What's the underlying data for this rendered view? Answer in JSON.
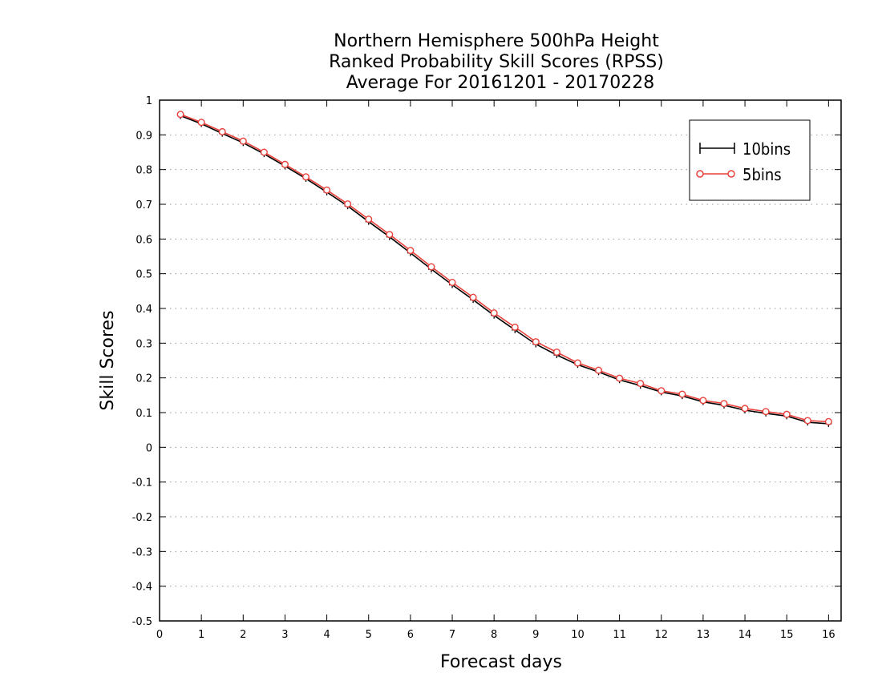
{
  "chart_data": {
    "type": "line",
    "title": [
      "Northern Hemisphere 500hPa Height",
      "Ranked Probability Skill Scores (RPSS)",
      "Average For 20161201 - 20170228"
    ],
    "xlabel": "Forecast days",
    "ylabel": "Skill Scores",
    "xlim": [
      0,
      16.3
    ],
    "ylim": [
      -0.5,
      1
    ],
    "xticks": [
      0,
      1,
      2,
      3,
      4,
      5,
      6,
      7,
      8,
      9,
      10,
      11,
      12,
      13,
      14,
      15,
      16
    ],
    "yticks": [
      -0.5,
      -0.4,
      -0.3,
      -0.2,
      -0.1,
      0,
      0.1,
      0.2,
      0.3,
      0.4,
      0.5,
      0.6,
      0.7,
      0.8,
      0.9,
      1
    ],
    "ytick_labels": [
      "-0.5",
      "-0.4",
      "-0.3",
      "-0.2",
      "-0.1",
      "0",
      "0.1",
      "0.2",
      "0.3",
      "0.4",
      "0.5",
      "0.6",
      "0.7",
      "0.8",
      "0.9",
      "1"
    ],
    "grid": true,
    "legend_position": "top-right",
    "x": [
      0.5,
      1,
      1.5,
      2,
      2.5,
      3,
      3.5,
      4,
      4.5,
      5,
      5.5,
      6,
      6.5,
      7,
      7.5,
      8,
      8.5,
      9,
      9.5,
      10,
      10.5,
      11,
      11.5,
      12,
      12.5,
      13,
      13.5,
      14,
      14.5,
      15,
      15.5,
      16
    ],
    "series": [
      {
        "name": "10bins",
        "color": "#000000",
        "marker": "plus",
        "values": [
          0.955,
          0.932,
          0.904,
          0.877,
          0.845,
          0.81,
          0.774,
          0.735,
          0.695,
          0.65,
          0.606,
          0.56,
          0.513,
          0.468,
          0.425,
          0.38,
          0.338,
          0.297,
          0.266,
          0.238,
          0.217,
          0.194,
          0.178,
          0.159,
          0.148,
          0.131,
          0.121,
          0.107,
          0.098,
          0.09,
          0.072,
          0.068
        ]
      },
      {
        "name": "5bins",
        "color": "#e8403a",
        "marker": "circle",
        "values": [
          0.959,
          0.936,
          0.909,
          0.882,
          0.85,
          0.815,
          0.779,
          0.741,
          0.701,
          0.657,
          0.613,
          0.567,
          0.52,
          0.475,
          0.432,
          0.387,
          0.346,
          0.304,
          0.274,
          0.243,
          0.222,
          0.199,
          0.184,
          0.163,
          0.153,
          0.135,
          0.126,
          0.112,
          0.103,
          0.095,
          0.077,
          0.074
        ]
      }
    ]
  }
}
